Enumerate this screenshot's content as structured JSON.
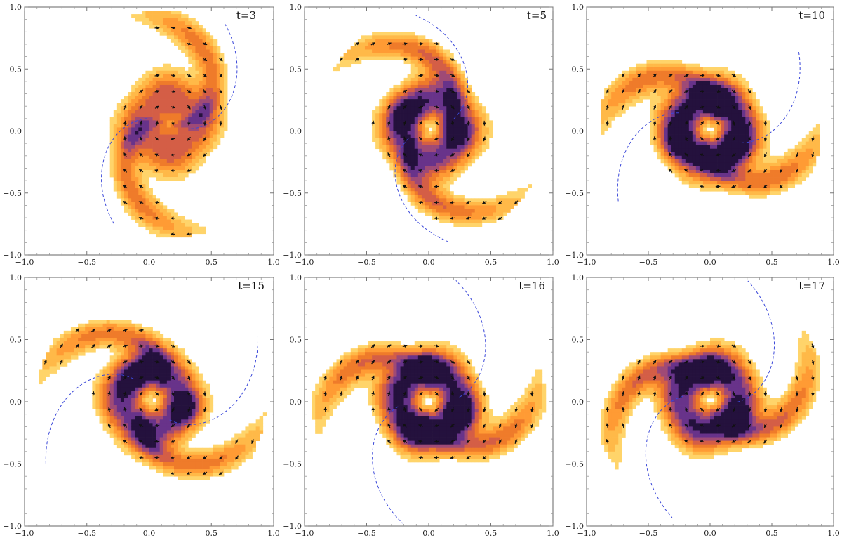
{
  "figure": {
    "panels": [
      {
        "time_label": "t=3",
        "xlim": [
          -1.0,
          1.0
        ],
        "ylim": [
          -1.0,
          1.0
        ],
        "x_ticks": [
          "−1.0",
          "−0.5",
          "0.0",
          "0.5",
          "1.0"
        ],
        "y_ticks": [
          "−1.0",
          "−0.5",
          "0.0",
          "0.5",
          "1.0"
        ],
        "spiral": {
          "phase": -0.3,
          "twist": 2.2,
          "arms": 2,
          "r_outer": 0.92
        },
        "center": [
          0.16,
          0.06
        ],
        "core_strength": 0.55,
        "hot_spots": [
          [
            0.16,
            0.06,
            0.09
          ]
        ],
        "dashed_curves": [
          {
            "phase": 2.6,
            "twist": 1.75,
            "r_start": 0.18,
            "r_end": 0.92
          },
          {
            "phase": -0.55,
            "twist": 1.75,
            "r_start": 0.18,
            "r_end": 0.92
          }
        ]
      },
      {
        "time_label": "t=5",
        "xlim": [
          -1.0,
          1.0
        ],
        "ylim": [
          -1.0,
          1.0
        ],
        "x_ticks": [
          "−1.0",
          "−0.5",
          "0.0",
          "0.5",
          "1.0"
        ],
        "y_ticks": [
          "−1.0",
          "−0.5",
          "0.0",
          "0.5",
          "1.0"
        ],
        "spiral": {
          "phase": 0.2,
          "twist": 2.4,
          "arms": 2,
          "r_outer": 0.92
        },
        "center": [
          0.02,
          0.02
        ],
        "core_strength": 0.78,
        "hot_spots": [
          [
            -0.18,
            0.15,
            0.1
          ],
          [
            0.18,
            -0.02,
            0.08
          ]
        ],
        "dashed_curves": [
          {
            "phase": 3.2,
            "twist": 1.8,
            "r_start": 0.2,
            "r_end": 0.92
          },
          {
            "phase": 0.05,
            "twist": 1.8,
            "r_start": 0.2,
            "r_end": 0.92
          }
        ]
      },
      {
        "time_label": "t=10",
        "xlim": [
          -1.0,
          1.0
        ],
        "ylim": [
          -1.0,
          1.0
        ],
        "x_ticks": [
          "−1.0",
          "−0.5",
          "0.0",
          "0.5",
          "1.0"
        ],
        "y_ticks": [
          "−1.0",
          "−0.5",
          "0.0",
          "0.5",
          "1.0"
        ],
        "spiral": {
          "phase": 1.1,
          "twist": 2.1,
          "arms": 2,
          "r_outer": 0.9
        },
        "center": [
          0.0,
          0.02
        ],
        "core_strength": 0.95,
        "hot_spots": [
          [
            -0.28,
            -0.1,
            0.1
          ],
          [
            0.2,
            -0.14,
            0.09
          ],
          [
            0.05,
            0.22,
            0.09
          ]
        ],
        "dashed_curves": [
          {
            "phase": 2.2,
            "twist": 1.7,
            "r_start": 0.28,
            "r_end": 0.95
          },
          {
            "phase": -0.9,
            "twist": 1.7,
            "r_start": 0.28,
            "r_end": 0.95
          }
        ]
      },
      {
        "time_label": "t=15",
        "xlim": [
          -1.0,
          1.0
        ],
        "ylim": [
          -1.0,
          1.0
        ],
        "x_ticks": [
          "−1.0",
          "−0.5",
          "0.0",
          "0.5",
          "1.0"
        ],
        "y_ticks": [
          "−1.0",
          "−0.5",
          "0.0",
          "0.5",
          "1.0"
        ],
        "spiral": {
          "phase": 0.7,
          "twist": 2.3,
          "arms": 2,
          "r_outer": 0.92
        },
        "center": [
          0.02,
          0.02
        ],
        "core_strength": 0.82,
        "hot_spots": [
          [
            -0.1,
            0.2,
            0.1
          ],
          [
            0.28,
            -0.05,
            0.08
          ]
        ],
        "dashed_curves": [
          {
            "phase": 1.9,
            "twist": 1.8,
            "r_start": 0.22,
            "r_end": 1.0
          },
          {
            "phase": -1.25,
            "twist": 1.8,
            "r_start": 0.22,
            "r_end": 1.0
          }
        ]
      },
      {
        "time_label": "t=16",
        "xlim": [
          -1.0,
          1.0
        ],
        "ylim": [
          -1.0,
          1.0
        ],
        "x_ticks": [
          "−1.0",
          "−0.5",
          "0.0",
          "0.5",
          "1.0"
        ],
        "y_ticks": [
          "−1.0",
          "−0.5",
          "0.0",
          "0.5",
          "1.0"
        ],
        "spiral": {
          "phase": 1.3,
          "twist": 2.1,
          "arms": 2,
          "r_outer": 0.94
        },
        "center": [
          0.0,
          0.0
        ],
        "core_strength": 0.92,
        "hot_spots": [
          [
            -0.12,
            -0.22,
            0.09
          ],
          [
            0.26,
            -0.1,
            0.1
          ],
          [
            0.0,
            0.28,
            0.08
          ]
        ],
        "dashed_curves": [
          {
            "phase": 2.9,
            "twist": 1.6,
            "r_start": 0.25,
            "r_end": 1.0
          },
          {
            "phase": -0.25,
            "twist": 1.6,
            "r_start": 0.25,
            "r_end": 1.0
          }
        ]
      },
      {
        "time_label": "t=17",
        "xlim": [
          -1.0,
          1.0
        ],
        "ylim": [
          -1.0,
          1.0
        ],
        "x_ticks": [
          "−1.0",
          "−0.5",
          "0.0",
          "0.5",
          "1.0"
        ],
        "y_ticks": [
          "−1.0",
          "−0.5",
          "0.0",
          "0.5",
          "1.0"
        ],
        "spiral": {
          "phase": 1.55,
          "twist": 2.2,
          "arms": 2,
          "r_outer": 0.94
        },
        "center": [
          0.0,
          0.02
        ],
        "core_strength": 0.86,
        "hot_spots": [
          [
            -0.02,
            0.26,
            0.1
          ],
          [
            0.18,
            -0.12,
            0.08
          ]
        ],
        "dashed_curves": [
          {
            "phase": 2.65,
            "twist": 1.75,
            "r_start": 0.22,
            "r_end": 1.0
          },
          {
            "phase": -0.49,
            "twist": 1.75,
            "r_start": 0.22,
            "r_end": 1.0
          }
        ]
      }
    ]
  },
  "chart_data": {
    "type": "heatmap",
    "panel_times": [
      3,
      5,
      10,
      15,
      16,
      17
    ],
    "panel_labels": [
      "t=3",
      "t=5",
      "t=10",
      "t=15",
      "t=16",
      "t=17"
    ],
    "xlim": [
      -1.0,
      1.0
    ],
    "ylim": [
      -1.0,
      1.0
    ],
    "x_ticks": [
      -1.0,
      -0.5,
      0.0,
      0.5,
      1.0
    ],
    "y_ticks": [
      -1.0,
      -0.5,
      0.0,
      0.5,
      1.0
    ],
    "contour_colors": [
      "#ffd46a",
      "#ffb948",
      "#ff9b34",
      "#ef7b2a",
      "#d45e46",
      "#9f4a76",
      "#68338a",
      "#24113d"
    ],
    "arrow_color": "#111111",
    "dashed_curve_color": "#3b48d9",
    "grid": false
  }
}
